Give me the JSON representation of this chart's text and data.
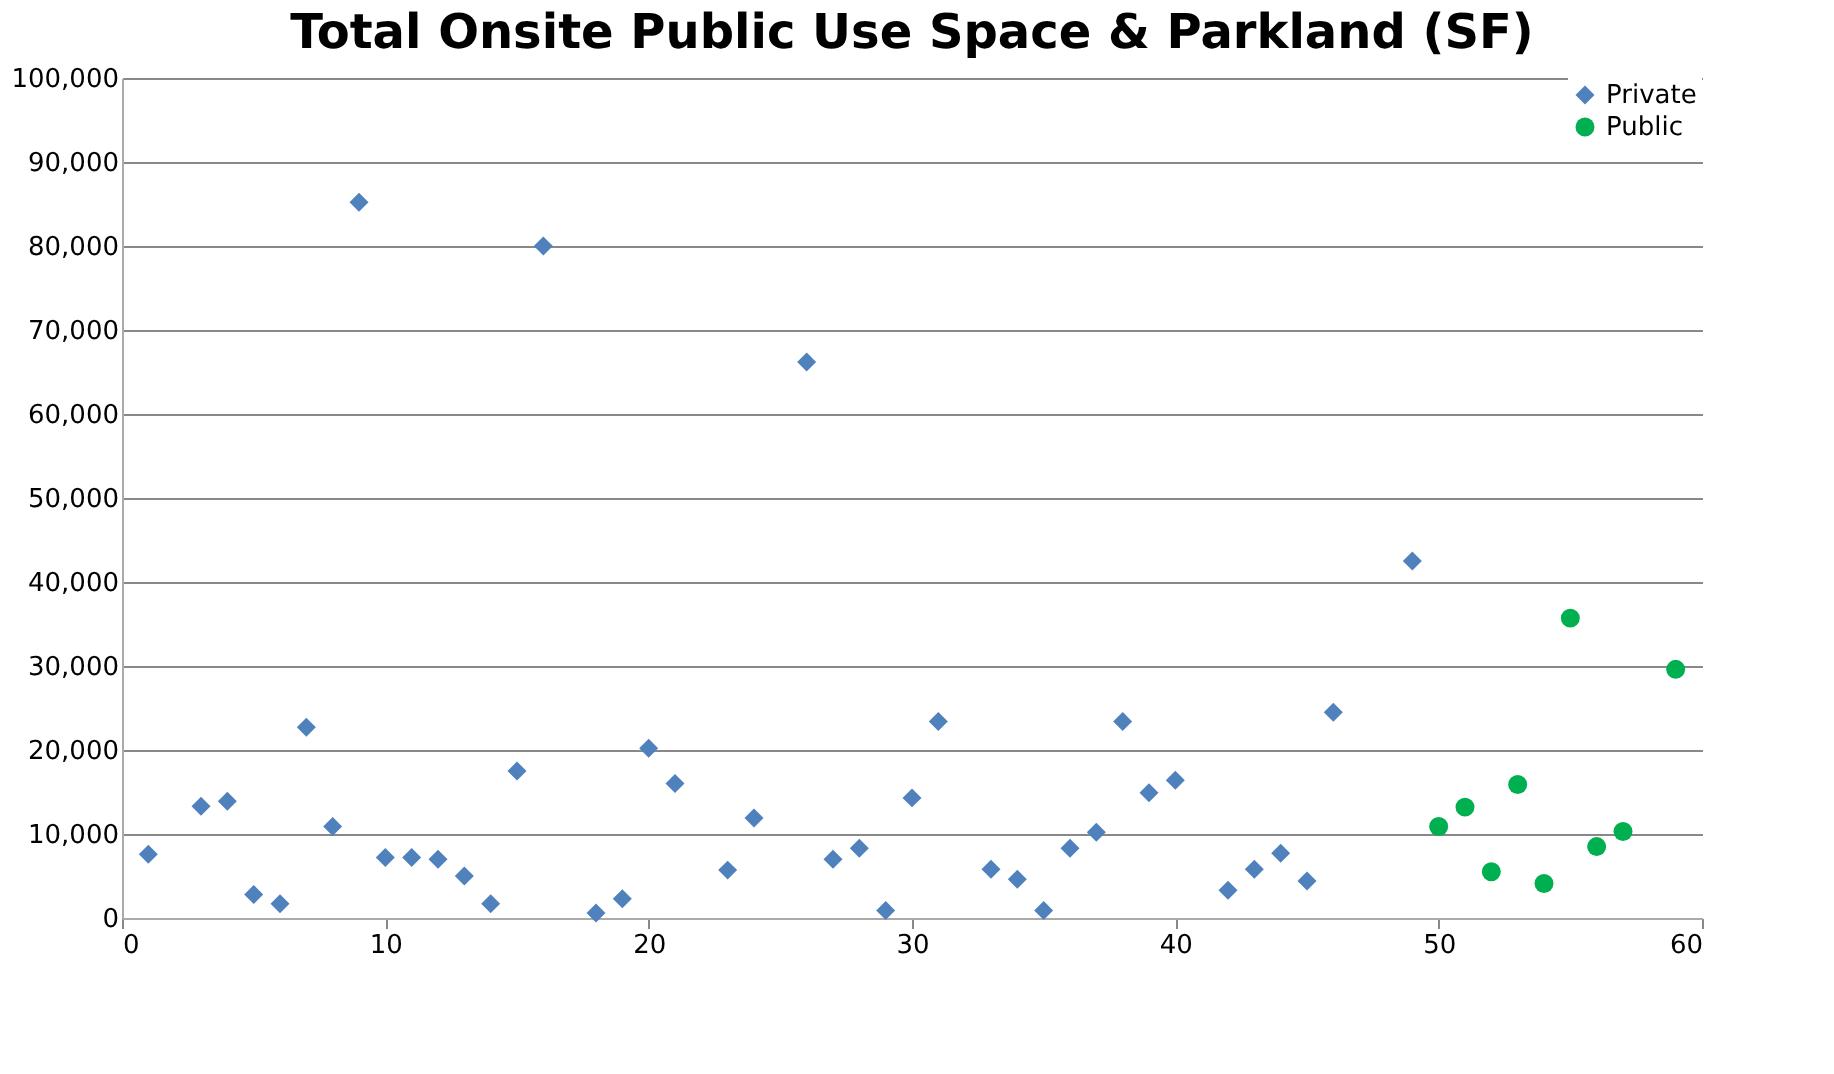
{
  "chart_data": {
    "type": "scatter",
    "title": "Total Onsite Public Use Space & Parkland (SF)",
    "xlim": [
      0,
      60
    ],
    "xticks": [
      0,
      10,
      20,
      30,
      40,
      50,
      60
    ],
    "ylim": [
      0,
      100000
    ],
    "yticks": [
      0,
      {
        "value": 10000,
        "label": "10,000"
      },
      {
        "value": 20000,
        "label": "20,000"
      },
      {
        "value": 30000,
        "label": "30,000"
      },
      {
        "value": 40000,
        "label": "40,000"
      },
      {
        "value": 50000,
        "label": "50,000"
      },
      {
        "value": 60000,
        "label": "60,000"
      },
      {
        "value": 70000,
        "label": "70,000"
      },
      {
        "value": 80000,
        "label": "80,000"
      },
      {
        "value": 90000,
        "label": "90,000"
      },
      {
        "value": 100000,
        "label": "100,000"
      }
    ],
    "grid": "y",
    "legend": "top right",
    "series": [
      {
        "name": "Private",
        "color": "#4f81bd",
        "marker": "diamond",
        "x": [
          1,
          3,
          4,
          5,
          6,
          7,
          8,
          9,
          10,
          11,
          12,
          13,
          14,
          15,
          16,
          18,
          19,
          20,
          21,
          23,
          24,
          26,
          27,
          28,
          29,
          30,
          31,
          33,
          34,
          35,
          36,
          37,
          38,
          39,
          40,
          42,
          43,
          44,
          45,
          46,
          49
        ],
        "values": [
          7600,
          13300,
          13900,
          2800,
          1700,
          22700,
          10900,
          85200,
          7200,
          7200,
          7000,
          5000,
          1700,
          17500,
          80000,
          600,
          2300,
          20200,
          16000,
          5700,
          11900,
          66200,
          7000,
          8300,
          900,
          14300,
          23400,
          5800,
          4600,
          900,
          8300,
          10200,
          23400,
          14900,
          16400,
          3300,
          5800,
          7700,
          4400,
          24500,
          42500
        ]
      },
      {
        "name": "Public",
        "color": "#00b050",
        "marker": "circle",
        "x": [
          50,
          51,
          52,
          53,
          54,
          55,
          56,
          57,
          59
        ],
        "values": [
          10900,
          13200,
          5500,
          15900,
          4100,
          35700,
          8500,
          10300,
          29600
        ]
      }
    ]
  }
}
